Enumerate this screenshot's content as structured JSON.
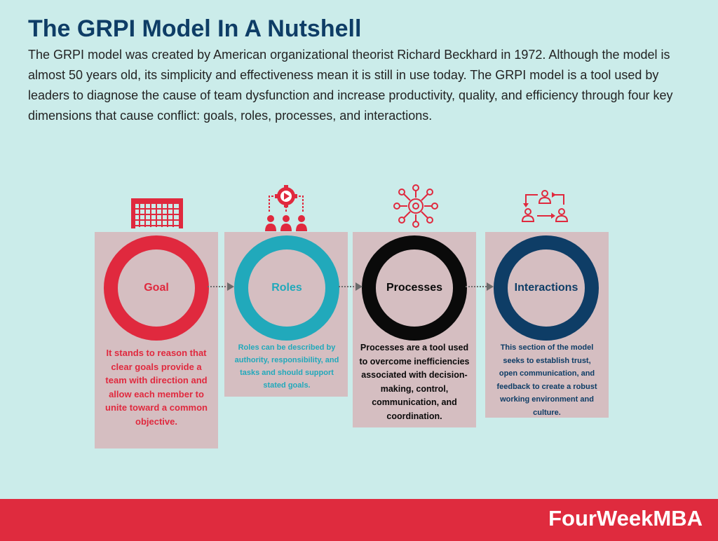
{
  "header": {
    "title": "The GRPI Model In A Nutshell",
    "intro": "The GRPI model was created by American organizational theorist Richard Beckhard in 1972. Although the model is almost 50 years old, its simplicity and effectiveness mean it is still in use today. The GRPI model is a tool used by leaders to diagnose the cause of team dysfunction and increase productivity, quality, and efficiency through four key dimensions that cause conflict: goals, roles, processes, and interactions."
  },
  "stages": [
    {
      "label": "Goal",
      "icon": "soccer-goal-icon",
      "color": "#e0293e",
      "description": "It stands to reason that clear goals provide a team with direction and allow each member to unite toward a common objective."
    },
    {
      "label": "Roles",
      "icon": "team-gear-icon",
      "color": "#21a9bb",
      "description": "Roles can be described by authority, responsibility, and tasks and should support stated goals."
    },
    {
      "label": "Processes",
      "icon": "gear-network-icon",
      "color": "#0a0a0a",
      "description": "Processes are a tool used to overcome inefficiencies associated with decision-making, control, communication, and coordination."
    },
    {
      "label": "Interactions",
      "icon": "people-exchange-icon",
      "color": "#0e3d66",
      "description": "This section of the model seeks to establish trust, open communication, and feedback to create a robust working environment and culture."
    }
  ],
  "colors": {
    "background": "#cbecea",
    "card": "#d5bec1",
    "accent_red": "#df2b3e",
    "title_blue": "#0e3d66",
    "connector": "#6b6b6b"
  },
  "footer": {
    "brand": "FourWeekMBA"
  }
}
